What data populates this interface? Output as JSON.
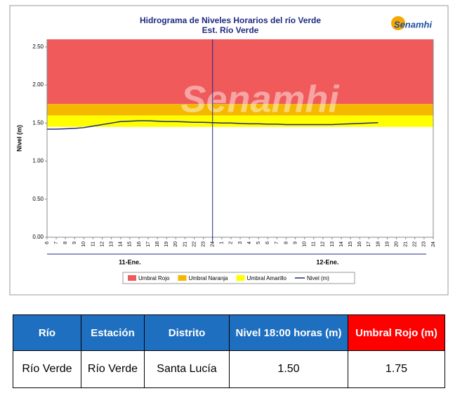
{
  "chart_data": {
    "type": "line",
    "title": "Hidrograma de Niveles Horarios del río Verde",
    "subtitle": "Est. Río Verde",
    "logo": "Senamhi",
    "watermark": "Senamhi",
    "y_label": "Nivel (m)",
    "categories": [
      "6",
      "7",
      "8",
      "9",
      "10",
      "11",
      "12",
      "13",
      "14",
      "15",
      "16",
      "17",
      "18",
      "19",
      "20",
      "21",
      "22",
      "23",
      "24",
      "1",
      "2",
      "3",
      "4",
      "5",
      "6",
      "7",
      "8",
      "9",
      "10",
      "11",
      "12",
      "13",
      "14",
      "15",
      "16",
      "17",
      "18",
      "19",
      "20",
      "21",
      "22",
      "23",
      "24"
    ],
    "groups": [
      {
        "label": "11-Ene.",
        "from": 0,
        "to": 18
      },
      {
        "label": "12-Ene.",
        "from": 19,
        "to": 42
      }
    ],
    "series": [
      {
        "name": "Nivel (m)",
        "color": "#1f2a80",
        "values": [
          1.42,
          1.42,
          1.425,
          1.43,
          1.44,
          1.46,
          1.48,
          1.5,
          1.52,
          1.525,
          1.53,
          1.53,
          1.525,
          1.52,
          1.52,
          1.515,
          1.51,
          1.51,
          1.505,
          1.5,
          1.5,
          1.495,
          1.49,
          1.49,
          1.485,
          1.485,
          1.48,
          1.48,
          1.48,
          1.48,
          1.48,
          1.48,
          1.485,
          1.49,
          1.495,
          1.5,
          1.505,
          null,
          null,
          null,
          null,
          null,
          null
        ]
      }
    ],
    "thresholds": [
      {
        "name": "Umbral Rojo",
        "color": "#f05a5a",
        "from": 1.75,
        "to": 2.6
      },
      {
        "name": "Umbral Naranja",
        "color": "#f5b800",
        "from": 1.6,
        "to": 1.75
      },
      {
        "name": "Umbral Amarillo",
        "color": "#ffff00",
        "from": 1.45,
        "to": 1.6
      }
    ],
    "ylim": [
      0,
      2.6
    ],
    "yticks": [
      {
        "value": 0,
        "label": "0.00"
      },
      {
        "value": 0.5,
        "label": "0.50"
      },
      {
        "value": 1,
        "label": "1.00"
      },
      {
        "value": 1.5,
        "label": "1.50"
      },
      {
        "value": 2,
        "label": "2.00"
      },
      {
        "value": 2.5,
        "label": "2.50"
      }
    ]
  },
  "table": {
    "header": [
      "Río",
      "Estación",
      "Distrito",
      "Nivel 18:00 horas (m)",
      "Umbral Rojo (m)"
    ],
    "rows": [
      [
        "Río Verde",
        "Río Verde",
        "Santa Lucía",
        "1.50",
        "1.75"
      ]
    ]
  }
}
